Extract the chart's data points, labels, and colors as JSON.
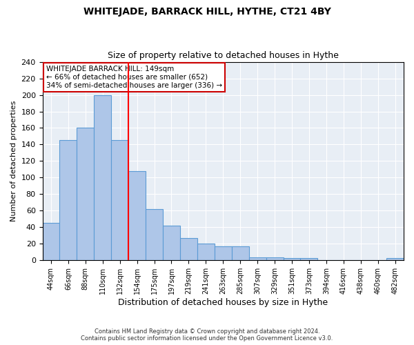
{
  "title": "WHITEJADE, BARRACK HILL, HYTHE, CT21 4BY",
  "subtitle": "Size of property relative to detached houses in Hythe",
  "xlabel": "Distribution of detached houses by size in Hythe",
  "ylabel": "Number of detached properties",
  "bar_labels": [
    "44sqm",
    "66sqm",
    "88sqm",
    "110sqm",
    "132sqm",
    "154sqm",
    "175sqm",
    "197sqm",
    "219sqm",
    "241sqm",
    "263sqm",
    "285sqm",
    "307sqm",
    "329sqm",
    "351sqm",
    "373sqm",
    "394sqm",
    "416sqm",
    "438sqm",
    "460sqm",
    "482sqm"
  ],
  "bar_values": [
    45,
    145,
    160,
    200,
    145,
    108,
    62,
    42,
    27,
    20,
    17,
    17,
    4,
    4,
    3,
    3,
    0,
    0,
    0,
    0,
    3
  ],
  "bar_color": "#aec6e8",
  "bar_edge_color": "#5b9bd5",
  "background_color": "#e8eef5",
  "grid_color": "#ffffff",
  "red_line_label": "WHITEJADE BARRACK HILL: 149sqm",
  "annotation_line1": "← 66% of detached houses are smaller (652)",
  "annotation_line2": "34% of semi-detached houses are larger (336) →",
  "box_edge_color": "#cc0000",
  "ylim": [
    0,
    240
  ],
  "yticks": [
    0,
    20,
    40,
    60,
    80,
    100,
    120,
    140,
    160,
    180,
    200,
    220,
    240
  ],
  "footnote1": "Contains HM Land Registry data © Crown copyright and database right 2024.",
  "footnote2": "Contains public sector information licensed under the Open Government Licence v3.0."
}
